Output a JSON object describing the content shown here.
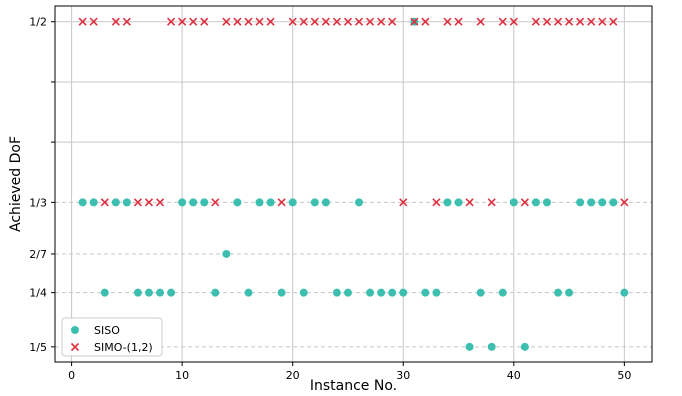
{
  "chart_data": {
    "type": "scatter",
    "xlabel": "Instance No.",
    "ylabel": "Achieved DoF",
    "xlim": [
      -1.5,
      52.5
    ],
    "ylim": [
      0.186,
      0.5145
    ],
    "x_ticks": [
      0,
      10,
      20,
      30,
      40,
      50
    ],
    "y_ticks": [
      {
        "value": 0.2,
        "label": "1/5"
      },
      {
        "value": 0.25,
        "label": "1/4"
      },
      {
        "value": 0.2857,
        "label": "2/7"
      },
      {
        "value": 0.3333,
        "label": "1/3"
      },
      {
        "value": 0.5,
        "label": "1/2"
      }
    ],
    "grid": true,
    "legend_position": "lower-left",
    "colors": {
      "siso": "#3dbfb0",
      "simo": "#e03040"
    },
    "series": [
      {
        "name": "SISO",
        "marker": "circle",
        "points": [
          [
            1,
            0.3333
          ],
          [
            2,
            0.3333
          ],
          [
            3,
            0.25
          ],
          [
            4,
            0.3333
          ],
          [
            5,
            0.3333
          ],
          [
            6,
            0.25
          ],
          [
            7,
            0.25
          ],
          [
            8,
            0.25
          ],
          [
            9,
            0.25
          ],
          [
            10,
            0.3333
          ],
          [
            11,
            0.3333
          ],
          [
            12,
            0.3333
          ],
          [
            13,
            0.25
          ],
          [
            14,
            0.2857
          ],
          [
            15,
            0.3333
          ],
          [
            16,
            0.25
          ],
          [
            17,
            0.3333
          ],
          [
            18,
            0.3333
          ],
          [
            19,
            0.25
          ],
          [
            20,
            0.3333
          ],
          [
            21,
            0.25
          ],
          [
            22,
            0.3333
          ],
          [
            23,
            0.3333
          ],
          [
            24,
            0.25
          ],
          [
            25,
            0.25
          ],
          [
            26,
            0.3333
          ],
          [
            27,
            0.25
          ],
          [
            28,
            0.25
          ],
          [
            29,
            0.25
          ],
          [
            30,
            0.25
          ],
          [
            31,
            0.5
          ],
          [
            32,
            0.25
          ],
          [
            33,
            0.25
          ],
          [
            34,
            0.3333
          ],
          [
            35,
            0.3333
          ],
          [
            36,
            0.2
          ],
          [
            37,
            0.25
          ],
          [
            38,
            0.2
          ],
          [
            39,
            0.25
          ],
          [
            40,
            0.3333
          ],
          [
            41,
            0.2
          ],
          [
            42,
            0.3333
          ],
          [
            43,
            0.3333
          ],
          [
            44,
            0.25
          ],
          [
            45,
            0.25
          ],
          [
            46,
            0.3333
          ],
          [
            47,
            0.3333
          ],
          [
            48,
            0.3333
          ],
          [
            49,
            0.3333
          ],
          [
            50,
            0.25
          ]
        ]
      },
      {
        "name": "SIMO-(1,2)",
        "marker": "x",
        "points": [
          [
            1,
            0.5
          ],
          [
            2,
            0.5
          ],
          [
            3,
            0.3333
          ],
          [
            4,
            0.5
          ],
          [
            5,
            0.5
          ],
          [
            6,
            0.3333
          ],
          [
            7,
            0.3333
          ],
          [
            8,
            0.3333
          ],
          [
            9,
            0.5
          ],
          [
            10,
            0.5
          ],
          [
            11,
            0.5
          ],
          [
            12,
            0.5
          ],
          [
            13,
            0.3333
          ],
          [
            14,
            0.5
          ],
          [
            15,
            0.5
          ],
          [
            16,
            0.5
          ],
          [
            17,
            0.5
          ],
          [
            18,
            0.5
          ],
          [
            19,
            0.3333
          ],
          [
            20,
            0.5
          ],
          [
            21,
            0.5
          ],
          [
            22,
            0.5
          ],
          [
            23,
            0.5
          ],
          [
            24,
            0.5
          ],
          [
            25,
            0.5
          ],
          [
            26,
            0.5
          ],
          [
            27,
            0.5
          ],
          [
            28,
            0.5
          ],
          [
            29,
            0.5
          ],
          [
            30,
            0.3333
          ],
          [
            31,
            0.5
          ],
          [
            32,
            0.5
          ],
          [
            33,
            0.3333
          ],
          [
            34,
            0.5
          ],
          [
            35,
            0.5
          ],
          [
            36,
            0.3333
          ],
          [
            37,
            0.5
          ],
          [
            38,
            0.3333
          ],
          [
            39,
            0.5
          ],
          [
            40,
            0.5
          ],
          [
            41,
            0.3333
          ],
          [
            42,
            0.5
          ],
          [
            43,
            0.5
          ],
          [
            44,
            0.5
          ],
          [
            45,
            0.5
          ],
          [
            46,
            0.5
          ],
          [
            47,
            0.5
          ],
          [
            48,
            0.5
          ],
          [
            49,
            0.5
          ],
          [
            50,
            0.3333
          ]
        ]
      }
    ]
  }
}
